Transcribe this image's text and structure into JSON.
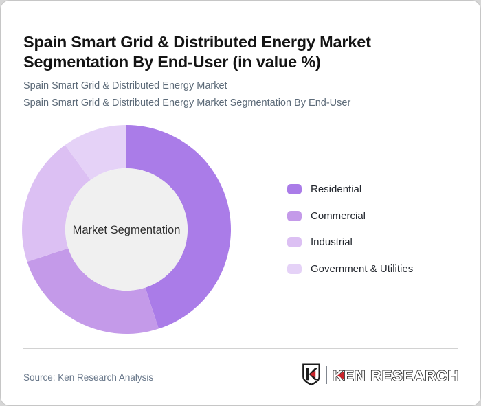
{
  "page": {
    "background_color": "#d6d6d6",
    "card_background_color": "#ffffff"
  },
  "header": {
    "title": "Spain Smart Grid & Distributed Energy Market Segmentation By End-User (in value %)",
    "subtitle_line1": "Spain Smart Grid & Distributed Energy Market",
    "subtitle_line2": "Spain Smart Grid & Distributed Energy Market Segmentation By End-User"
  },
  "chart_data": {
    "type": "pie",
    "variant": "donut",
    "title": "Spain Smart Grid & Distributed Energy Market Segmentation By End-User (in value %)",
    "units": "value %",
    "center_label": "Market Segmentation",
    "inner_circle_color": "#f0f0f0",
    "start_angle_deg": -90,
    "direction": "clockwise",
    "legend_position": "right",
    "segments": [
      {
        "label": "Residential",
        "value": 45,
        "color": "#aa7ce8"
      },
      {
        "label": "Commercial",
        "value": 25,
        "color": "#c49ae9"
      },
      {
        "label": "Industrial",
        "value": 20,
        "color": "#dcc0f3"
      },
      {
        "label": "Government & Utilities",
        "value": 10,
        "color": "#e5d2f7"
      }
    ]
  },
  "footer": {
    "source_label": "Source: Ken Research Analysis",
    "logo": {
      "brand_text": "KEN RESEARCH",
      "accent_color": "#c9242b",
      "outline_color": "#2b2b2b"
    }
  }
}
